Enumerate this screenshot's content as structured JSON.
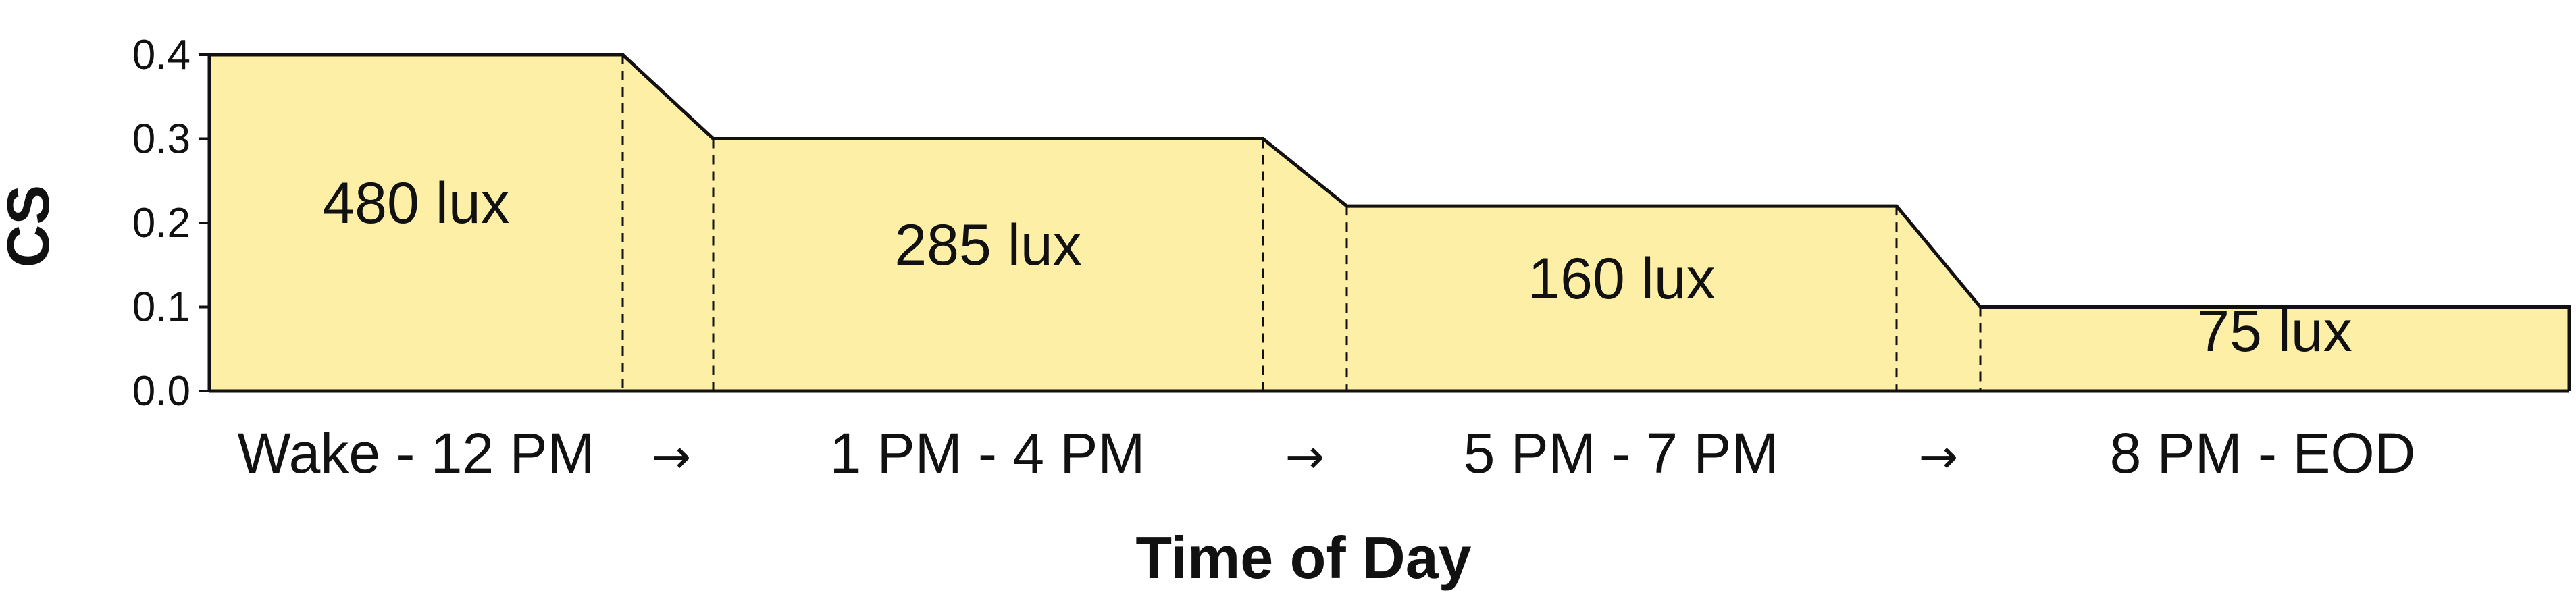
{
  "chart_data": {
    "type": "area",
    "title": "",
    "xlabel": "Time of Day",
    "ylabel": "CS",
    "ylim": [
      0,
      0.4
    ],
    "yticks": [
      "0.0",
      "0.1",
      "0.2",
      "0.3",
      "0.4"
    ],
    "grid": false,
    "fill_color": "#fdf0a6",
    "line_color": "#111111",
    "categories": [
      "Wake - 12 PM",
      "1 PM - 4 PM",
      "5 PM - 7 PM",
      "8 PM - EOD"
    ],
    "transition_labels": [
      "→",
      "→",
      "→"
    ],
    "series": [
      {
        "values": [
          0.4,
          0.3,
          0.22,
          0.1
        ],
        "labels": [
          "480 lux",
          "285 lux",
          "160 lux",
          "75 lux"
        ]
      }
    ]
  }
}
